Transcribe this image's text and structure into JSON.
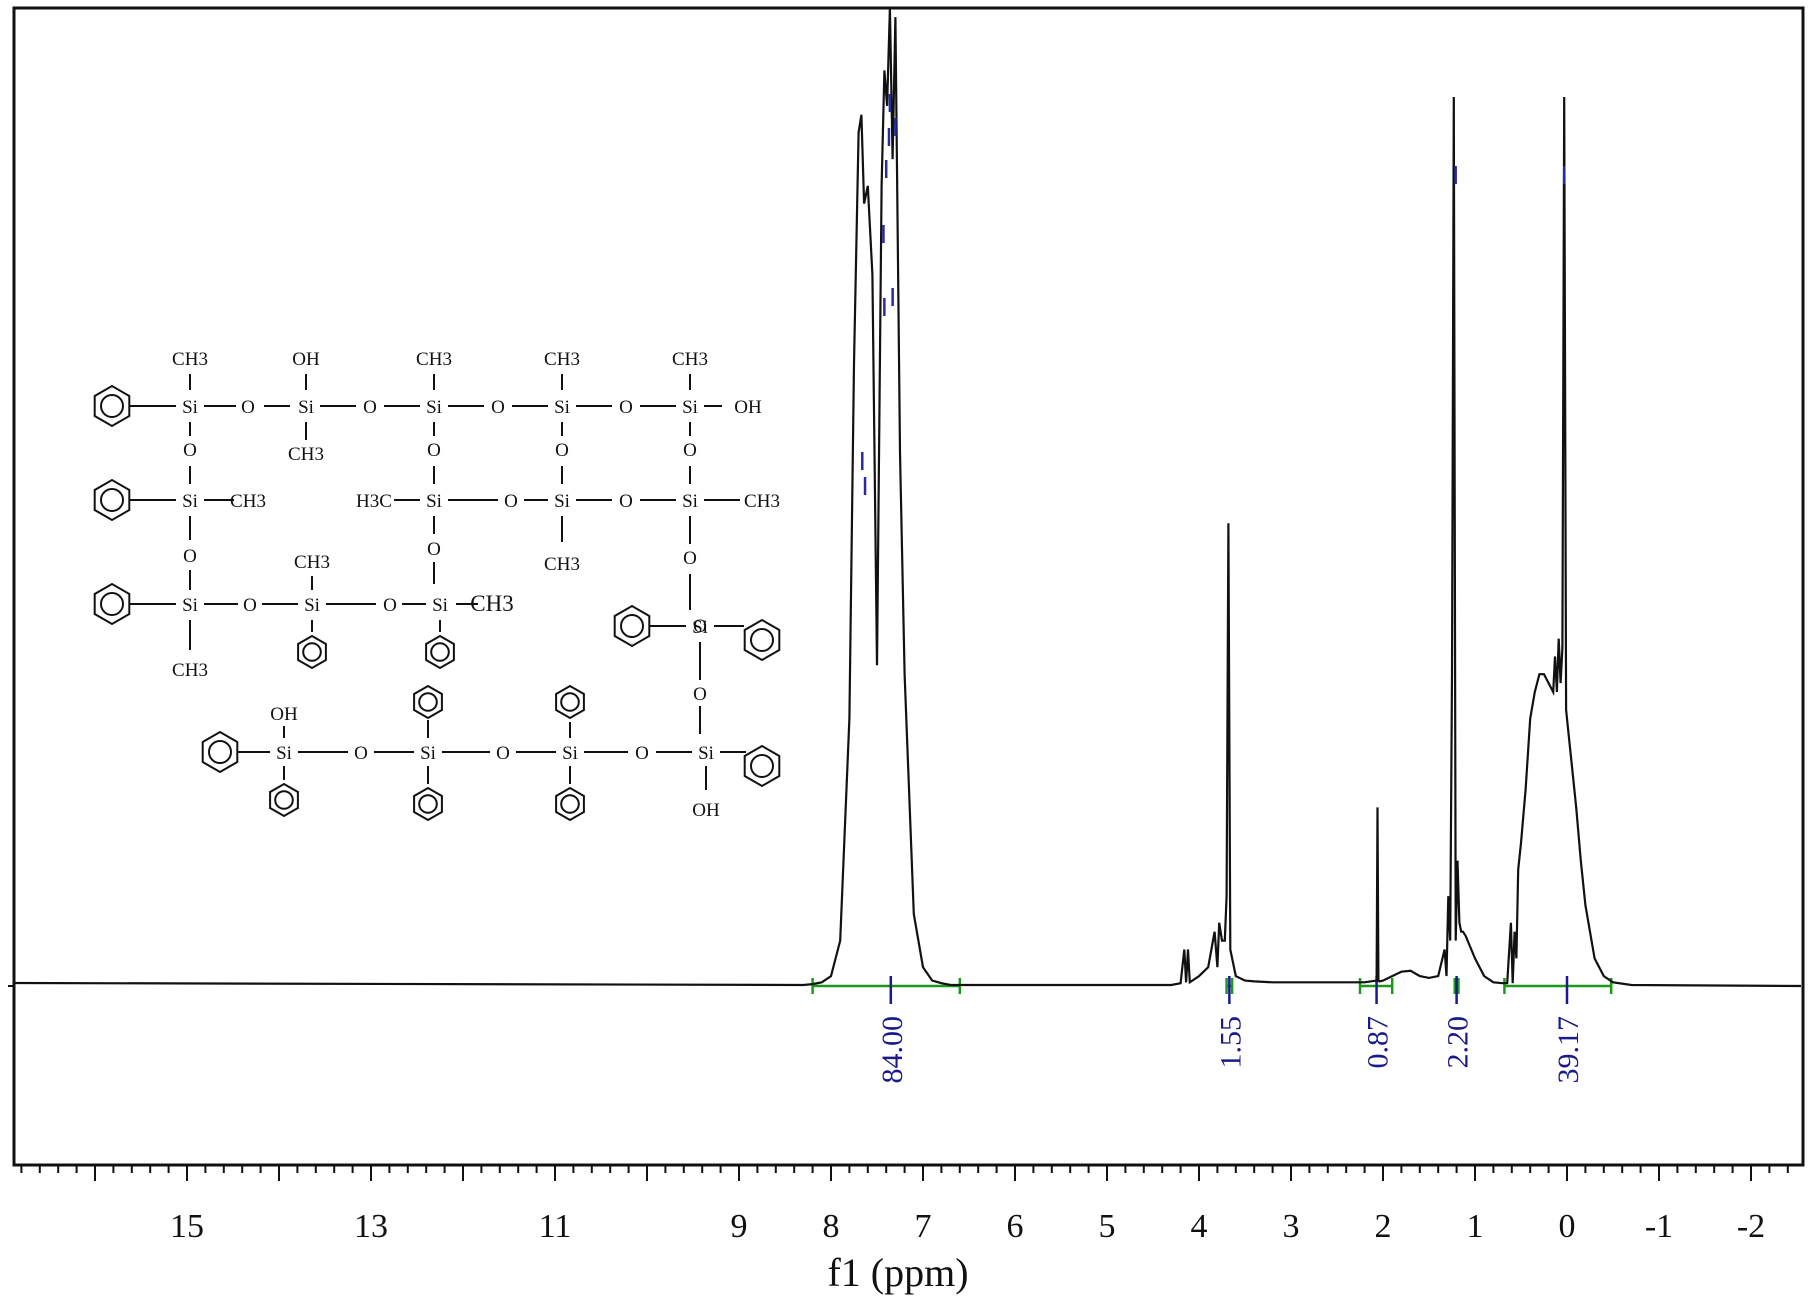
{
  "chart_data": {
    "type": "line",
    "title": "",
    "xlabel": "f1 (ppm)",
    "ylabel": "",
    "xlim": [
      17.0,
      -2.5
    ],
    "x_reversed": true,
    "grid": false,
    "x_ticks": [
      "15",
      "13",
      "11",
      "9",
      "8",
      "7",
      "6",
      "5",
      "4",
      "3",
      "2",
      "1",
      "0",
      "-1",
      "-2"
    ],
    "x_tick_values": [
      15,
      13,
      11,
      9,
      8,
      7,
      6,
      5,
      4,
      3,
      2,
      1,
      0,
      -1,
      -2
    ],
    "series": [
      {
        "x": [
          8.3,
          8.2,
          8.1,
          8.0,
          7.9,
          7.8,
          7.75,
          7.7,
          7.67,
          7.64,
          7.6,
          7.55,
          7.5,
          7.45,
          7.42,
          7.39,
          7.36,
          7.33,
          7.3,
          7.25,
          7.2,
          7.1,
          7.0,
          6.9,
          6.8,
          6.7,
          4.3,
          4.2,
          4.16,
          4.14,
          4.12,
          4.1,
          4.0,
          3.9,
          3.83,
          3.8,
          3.78,
          3.75,
          3.72,
          3.7,
          3.68,
          3.66,
          3.6,
          3.5,
          3.4,
          3.2,
          2.5,
          2.2,
          2.07,
          2.06,
          2.05,
          2.04,
          2.0,
          1.9,
          1.8,
          1.7,
          1.6,
          1.5,
          1.4,
          1.33,
          1.31,
          1.29,
          1.27,
          1.25,
          1.23,
          1.21,
          1.19,
          1.17,
          1.15,
          1.13,
          1.1,
          1.0,
          0.9,
          0.8,
          0.7,
          0.65,
          0.61,
          0.59,
          0.57,
          0.55,
          0.53,
          0.5,
          0.45,
          0.4,
          0.35,
          0.3,
          0.25,
          0.2,
          0.15,
          0.13,
          0.11,
          0.09,
          0.07,
          0.05,
          0.03,
          0.01,
          -0.01,
          -0.05,
          -0.1,
          -0.15,
          -0.2,
          -0.3,
          -0.4,
          -0.5,
          -0.7
        ],
        "y": [
          0.0,
          0.001,
          0.003,
          0.01,
          0.05,
          0.3,
          0.7,
          0.96,
          0.98,
          0.88,
          0.9,
          0.8,
          0.36,
          0.9,
          1.03,
          0.99,
          1.1,
          0.93,
          1.09,
          0.6,
          0.35,
          0.08,
          0.02,
          0.005,
          0.002,
          0.0,
          0.0,
          0.002,
          0.04,
          0.003,
          0.04,
          0.003,
          0.01,
          0.02,
          0.06,
          0.02,
          0.07,
          0.05,
          0.05,
          0.1,
          0.52,
          0.04,
          0.01,
          0.005,
          0.004,
          0.003,
          0.003,
          0.003,
          0.005,
          0.2,
          0.005,
          0.004,
          0.005,
          0.01,
          0.015,
          0.016,
          0.01,
          0.008,
          0.01,
          0.04,
          0.01,
          0.1,
          0.05,
          0.35,
          1.0,
          0.05,
          0.14,
          0.07,
          0.06,
          0.06,
          0.055,
          0.03,
          0.01,
          0.003,
          0.002,
          0.002,
          0.07,
          0.002,
          0.06,
          0.03,
          0.13,
          0.16,
          0.22,
          0.3,
          0.33,
          0.35,
          0.35,
          0.34,
          0.33,
          0.37,
          0.33,
          0.39,
          0.34,
          0.38,
          1.0,
          0.31,
          0.29,
          0.25,
          0.2,
          0.14,
          0.09,
          0.03,
          0.01,
          0.003,
          0.0
        ]
      }
    ],
    "integrals": [
      {
        "from": 8.2,
        "to": 6.6,
        "center": 7.35,
        "label": "84.00"
      },
      {
        "from": 3.7,
        "to": 3.64,
        "center": 3.67,
        "label": "1.55"
      },
      {
        "from": 2.25,
        "to": 1.9,
        "center": 2.07,
        "label": "0.87"
      },
      {
        "from": 1.22,
        "to": 1.18,
        "center": 1.2,
        "label": "2.20"
      },
      {
        "from": 0.68,
        "to": -0.48,
        "center": 0.0,
        "label": "39.17"
      }
    ],
    "peak_markers": [
      7.66,
      7.63,
      7.43,
      7.42,
      7.4,
      7.37,
      7.36,
      7.33,
      7.3,
      1.21,
      0.03
    ]
  },
  "structure": {
    "labels": [
      "CH3",
      "OH",
      "CH3",
      "CH3",
      "CH3",
      "Si",
      "O",
      "Si",
      "O",
      "Si",
      "O",
      "Si",
      "O",
      "Si",
      "OH",
      "CH3",
      "O",
      "O",
      "O",
      "O",
      "Si",
      "CH3",
      "H3C",
      "Si",
      "O",
      "Si",
      "O",
      "Si",
      "CH3",
      "O",
      "O",
      "CH3",
      "O",
      "CH3",
      "Si",
      "O",
      "Si",
      "O",
      "Si",
      "CH3",
      "O",
      "CH3",
      "Si",
      "O",
      "OH",
      "Si",
      "O",
      "Si",
      "O",
      "Si",
      "O",
      "Si",
      "OH"
    ]
  },
  "colors": {
    "trace": "#111111",
    "integral": "#1a9a1a",
    "integral_label": "#1a1a8c",
    "marker": "#2a2aa0"
  }
}
